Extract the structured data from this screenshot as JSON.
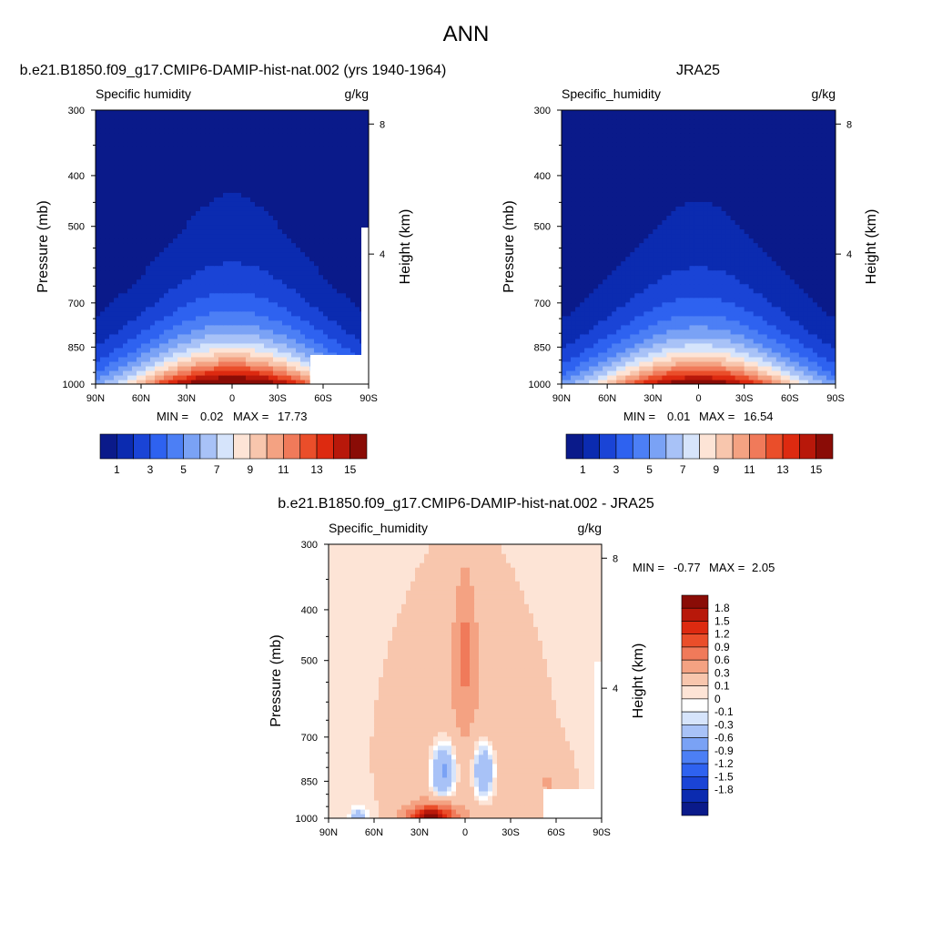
{
  "page_title": "ANN",
  "colors": {
    "abs_palette": [
      "#0a1a8a",
      "#0b2bb0",
      "#1a44d6",
      "#2e62f0",
      "#4c7ff5",
      "#7aa2f5",
      "#a8c2f7",
      "#d6e4fb",
      "#fde4d6",
      "#f8c6ad",
      "#f4a282",
      "#f07a5a",
      "#ea4e2a",
      "#dd2a10",
      "#b8180a",
      "#8a0c06"
    ],
    "diff_palette": [
      "#0a1a8a",
      "#0b2bb0",
      "#1a44d6",
      "#2e62f0",
      "#4c7ff5",
      "#7aa2f5",
      "#a8c2f7",
      "#d6e4fb",
      "#ffffff",
      "#fde4d6",
      "#f8c6ad",
      "#f4a282",
      "#f07a5a",
      "#ea4e2a",
      "#dd2a10",
      "#b8180a",
      "#8a0c06"
    ]
  },
  "chart_data": [
    {
      "type": "heatmap",
      "panel_title": "b.e21.B1850.f09_g17.CMIP6-DAMIP-hist-nat.002 (yrs 1940-1964)",
      "left_label": "Specific humidity",
      "units": "g/kg",
      "ylabel": "Pressure (mb)",
      "ylabel_right": "Height (km)",
      "xlim": [
        90,
        -90
      ],
      "ylim": [
        1000,
        300
      ],
      "x_ticks": [
        90,
        60,
        30,
        0,
        -30,
        -60,
        -90
      ],
      "x_tick_labels": [
        "90N",
        "60N",
        "30N",
        "0",
        "30S",
        "60S",
        "90S"
      ],
      "y_ticks": [
        1000,
        850,
        700,
        500,
        400,
        300
      ],
      "y_tick_labels": [
        "1000",
        "850",
        "700",
        "500",
        "400",
        "300"
      ],
      "height_ticks": [
        8,
        4
      ],
      "height_tick_labels": [
        "8",
        "4"
      ],
      "min_label": "MIN =",
      "min_value": "0.02",
      "max_label": "MAX =",
      "max_value": "17.73",
      "colorbar_ticks": [
        "1",
        "3",
        "5",
        "7",
        "9",
        "11",
        "13",
        "15"
      ],
      "field_peak": 17.7
    },
    {
      "type": "heatmap",
      "panel_title": "JRA25",
      "left_label": "Specific_humidity",
      "units": "g/kg",
      "ylabel": "Pressure (mb)",
      "ylabel_right": "Height (km)",
      "xlim": [
        90,
        -90
      ],
      "ylim": [
        1000,
        300
      ],
      "x_ticks": [
        90,
        60,
        30,
        0,
        -30,
        -60,
        -90
      ],
      "x_tick_labels": [
        "90N",
        "60N",
        "30N",
        "0",
        "30S",
        "60S",
        "90S"
      ],
      "y_ticks": [
        1000,
        850,
        700,
        500,
        400,
        300
      ],
      "y_tick_labels": [
        "1000",
        "850",
        "700",
        "500",
        "400",
        "300"
      ],
      "height_ticks": [
        8,
        4
      ],
      "height_tick_labels": [
        "8",
        "4"
      ],
      "min_label": "MIN =",
      "min_value": "0.01",
      "max_label": "MAX =",
      "max_value": "16.54",
      "colorbar_ticks": [
        "1",
        "3",
        "5",
        "7",
        "9",
        "11",
        "13",
        "15"
      ],
      "field_peak": 16.5
    },
    {
      "type": "heatmap",
      "panel_title": "b.e21.B1850.f09_g17.CMIP6-DAMIP-hist-nat.002 - JRA25",
      "left_label": "Specific_humidity",
      "units": "g/kg",
      "ylabel": "Pressure (mb)",
      "ylabel_right": "Height (km)",
      "xlim": [
        90,
        -90
      ],
      "ylim": [
        1000,
        300
      ],
      "x_ticks": [
        90,
        60,
        30,
        0,
        -30,
        -60,
        -90
      ],
      "x_tick_labels": [
        "90N",
        "60N",
        "30N",
        "0",
        "30S",
        "60S",
        "90S"
      ],
      "y_ticks": [
        1000,
        850,
        700,
        500,
        400,
        300
      ],
      "y_tick_labels": [
        "1000",
        "850",
        "700",
        "500",
        "400",
        "300"
      ],
      "height_ticks": [
        8,
        4
      ],
      "height_tick_labels": [
        "8",
        "4"
      ],
      "min_label": "MIN =",
      "min_value": "-0.77",
      "max_label": "MAX =",
      "max_value": "2.05",
      "colorbar_levels": [
        -1.8,
        -1.5,
        -1.2,
        -0.9,
        -0.6,
        -0.3,
        -0.1,
        0,
        0.1,
        0.3,
        0.6,
        0.9,
        1.2,
        1.5,
        1.8
      ],
      "colorbar_ticks": [
        "1.8",
        "1.5",
        "1.2",
        "0.9",
        "0.6",
        "0.3",
        "0.1",
        "0",
        "-0.1",
        "-0.3",
        "-0.6",
        "-0.9",
        "-1.2",
        "-1.5",
        "-1.8"
      ]
    }
  ]
}
